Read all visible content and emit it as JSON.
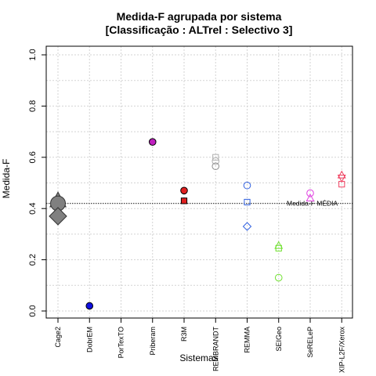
{
  "chart_data": {
    "type": "scatter",
    "title": "Medida-F agrupada por sistema",
    "subtitle": "[Classificação : ALTrel : Selectivo 3]",
    "xlabel": "Sistemas",
    "ylabel": "Medida-F",
    "ylim": [
      0,
      1
    ],
    "yticks": [
      "0.0",
      "0.2",
      "0.4",
      "0.6",
      "0.8",
      "1.0"
    ],
    "grid": true,
    "categories": [
      "Cage2",
      "DobrEM",
      "PorTexTO",
      "Priberam",
      "R3M",
      "REMBRANDT",
      "REMMA",
      "SEIGeo",
      "SeRELeP",
      "XIP-L2F/Xerox"
    ],
    "reference_line": {
      "label": "Medida-F MÉDIA",
      "value": 0.42
    },
    "points": [
      {
        "category": "Cage2",
        "value": 0.43,
        "shape": "triangle",
        "color": "#808080",
        "filled": true,
        "big": true
      },
      {
        "category": "Cage2",
        "value": 0.42,
        "shape": "circle",
        "color": "#808080",
        "filled": true,
        "big": true
      },
      {
        "category": "Cage2",
        "value": 0.37,
        "shape": "diamond",
        "color": "#808080",
        "filled": true,
        "big": true
      },
      {
        "category": "DobrEM",
        "value": 0.02,
        "shape": "circle",
        "color": "#1010e0",
        "filled": true
      },
      {
        "category": "Priberam",
        "value": 0.66,
        "shape": "circle",
        "color": "#c020c0",
        "filled": true
      },
      {
        "category": "R3M",
        "value": 0.47,
        "shape": "circle",
        "color": "#e02020",
        "filled": true
      },
      {
        "category": "R3M",
        "value": 0.43,
        "shape": "square",
        "color": "#e02020",
        "filled": true
      },
      {
        "category": "REMBRANDT",
        "value": 0.6,
        "shape": "square",
        "color": "#b0b0b0",
        "filled": false
      },
      {
        "category": "REMBRANDT",
        "value": 0.585,
        "shape": "circle",
        "color": "#b0b0b0",
        "filled": false
      },
      {
        "category": "REMBRANDT",
        "value": 0.565,
        "shape": "circle",
        "color": "#909090",
        "filled": false
      },
      {
        "category": "REMMA",
        "value": 0.49,
        "shape": "circle",
        "color": "#3060e0",
        "filled": false
      },
      {
        "category": "REMMA",
        "value": 0.425,
        "shape": "square",
        "color": "#3060e0",
        "filled": false
      },
      {
        "category": "REMMA",
        "value": 0.33,
        "shape": "diamond",
        "color": "#3060e0",
        "filled": false
      },
      {
        "category": "SEIGeo",
        "value": 0.255,
        "shape": "triangle",
        "color": "#70e030",
        "filled": false
      },
      {
        "category": "SEIGeo",
        "value": 0.245,
        "shape": "square",
        "color": "#70e030",
        "filled": false
      },
      {
        "category": "SEIGeo",
        "value": 0.13,
        "shape": "circle",
        "color": "#70e030",
        "filled": false
      },
      {
        "category": "SeRELeP",
        "value": 0.46,
        "shape": "circle",
        "color": "#e040e0",
        "filled": false
      },
      {
        "category": "SeRELeP",
        "value": 0.44,
        "shape": "triangle",
        "color": "#e040e0",
        "filled": false
      },
      {
        "category": "XIP-L2F/Xerox",
        "value": 0.53,
        "shape": "triangle",
        "color": "#f04060",
        "filled": false
      },
      {
        "category": "XIP-L2F/Xerox",
        "value": 0.52,
        "shape": "triangle_down",
        "color": "#f04060",
        "filled": false
      },
      {
        "category": "XIP-L2F/Xerox",
        "value": 0.495,
        "shape": "square",
        "color": "#f04060",
        "filled": false
      }
    ]
  }
}
